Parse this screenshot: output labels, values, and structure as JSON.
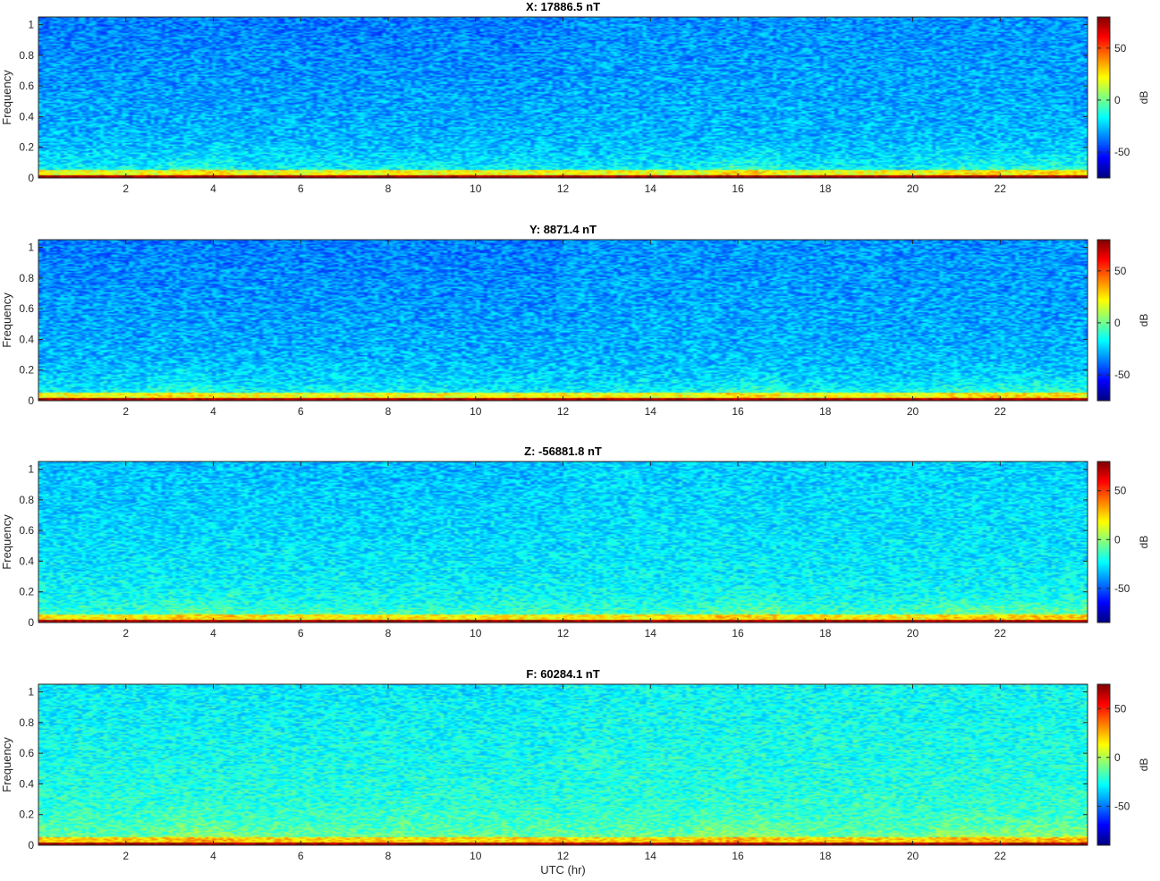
{
  "figure": {
    "xlabel": "UTC (hr)"
  },
  "chart_data": [
    {
      "type": "heatmap",
      "title": "X: 17886.5 nT",
      "xlabel": "",
      "ylabel": "Frequency",
      "colorbar_label": "dB",
      "xlim": [
        0,
        24
      ],
      "ylim": [
        0,
        1.05
      ],
      "x_ticks": [
        2,
        4,
        6,
        8,
        10,
        12,
        14,
        16,
        18,
        20,
        22
      ],
      "y_ticks": [
        0,
        0.2,
        0.4,
        0.6,
        0.8,
        1
      ],
      "clim": [
        -75,
        80
      ],
      "colorbar_ticks": [
        -50,
        0,
        50
      ],
      "colormap": "jet",
      "background_level_db": -28,
      "low_freq_band_db": 25,
      "dc_line_db": 80,
      "enhanced_intervals_hr": [
        [
          3,
          4.5
        ],
        [
          15.5,
          17
        ],
        [
          20.5,
          24
        ]
      ],
      "grid": false
    },
    {
      "type": "heatmap",
      "title": "Y: 8871.4 nT",
      "xlabel": "",
      "ylabel": "Frequency",
      "colorbar_label": "dB",
      "xlim": [
        0,
        24
      ],
      "ylim": [
        0,
        1.05
      ],
      "x_ticks": [
        2,
        4,
        6,
        8,
        10,
        12,
        14,
        16,
        18,
        20,
        22
      ],
      "y_ticks": [
        0,
        0.2,
        0.4,
        0.6,
        0.8,
        1
      ],
      "clim": [
        -75,
        80
      ],
      "colorbar_ticks": [
        -50,
        0,
        50
      ],
      "colormap": "jet",
      "background_level_db": -28,
      "low_freq_band_db": 25,
      "dc_line_db": 80,
      "enhanced_intervals_hr": [
        [
          2.5,
          4
        ],
        [
          15.5,
          17
        ],
        [
          20.5,
          24
        ]
      ],
      "grid": false
    },
    {
      "type": "heatmap",
      "title": "Z: -56881.8 nT",
      "xlabel": "",
      "ylabel": "Frequency",
      "colorbar_label": "dB",
      "xlim": [
        0,
        24
      ],
      "ylim": [
        0,
        1.05
      ],
      "x_ticks": [
        2,
        4,
        6,
        8,
        10,
        12,
        14,
        16,
        18,
        20,
        22
      ],
      "y_ticks": [
        0,
        0.2,
        0.4,
        0.6,
        0.8,
        1
      ],
      "clim": [
        -85,
        80
      ],
      "colorbar_ticks": [
        -50,
        0,
        50
      ],
      "colormap": "jet",
      "background_level_db": -25,
      "low_freq_band_db": 25,
      "dc_line_db": 80,
      "enhanced_intervals_hr": [
        [
          3,
          4.5
        ],
        [
          15.5,
          17
        ],
        [
          20.5,
          24
        ]
      ],
      "grid": false
    },
    {
      "type": "heatmap",
      "title": "F: 60284.1 nT",
      "xlabel": "UTC (hr)",
      "ylabel": "Frequency",
      "colorbar_label": "dB",
      "xlim": [
        0,
        24
      ],
      "ylim": [
        0,
        1.05
      ],
      "x_ticks": [
        2,
        4,
        6,
        8,
        10,
        12,
        14,
        16,
        18,
        20,
        22
      ],
      "y_ticks": [
        0,
        0.2,
        0.4,
        0.6,
        0.8,
        1
      ],
      "clim": [
        -90,
        75
      ],
      "colorbar_ticks": [
        -50,
        0,
        50
      ],
      "colormap": "jet",
      "background_level_db": -22,
      "low_freq_band_db": 25,
      "dc_line_db": 75,
      "enhanced_intervals_hr": [
        [
          3,
          4.5
        ],
        [
          15,
          17
        ],
        [
          20.5,
          24
        ]
      ],
      "grid": false
    }
  ]
}
